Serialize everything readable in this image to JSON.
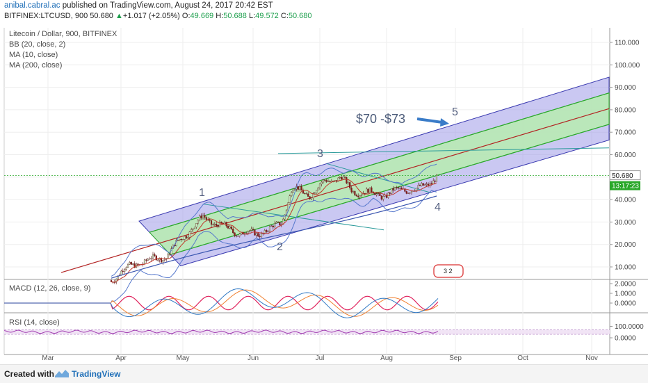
{
  "header": {
    "user": "anibal.cabral.ac",
    "published": "published on TradingView.com, August 24, 2017 20:42 EST",
    "symbol": "BITFINEX:LTCUSD, 900",
    "last": "50.680",
    "change": "+1.017 (+2.05%)",
    "o_label": "O:",
    "o": "49.669",
    "h_label": "H:",
    "h": "50.688",
    "l_label": "L:",
    "l": "49.572",
    "c_label": "C:",
    "c": "50.680"
  },
  "overlays": [
    "Litecoin / Dollar, 900, BITFINEX",
    "BB (20, close, 2)",
    "MA (10, close)",
    "MA (200, close)"
  ],
  "annotations": {
    "wave1": "1",
    "wave2": "2",
    "wave3": "3",
    "wave4": "4",
    "wave5": "5",
    "target": "$70 -$73",
    "mini": "3 2"
  },
  "footer": {
    "created": "Created with",
    "brand": "TradingView"
  },
  "colors": {
    "channel_fill": "#9f9ae8",
    "channel_edge": "#3a3ab0",
    "inner_fill": "#b7ecb0",
    "inner_edge": "#2aa82a",
    "median": "#b22222",
    "bullish": "#c8f0c8",
    "bearish": "#8b1a1a",
    "macd_line": "#2f78c4",
    "signal_line": "#f08030",
    "hist": "#e0245e",
    "rsi": "#a03bb0",
    "ma200": "#3a56b0",
    "bb": "#5577cc",
    "arrow": "#3a7cc8"
  },
  "chart_data": [
    {
      "type": "candlestick",
      "title": "Litecoin / Dollar, 900, BITFINEX",
      "x_ticks": [
        "Mar",
        "Apr",
        "May",
        "Jun",
        "Jul",
        "Aug",
        "Sep",
        "Oct",
        "Nov"
      ],
      "y_ticks": [
        "10.000",
        "20.000",
        "30.000",
        "40.000",
        "50.000",
        "60.000",
        "70.000",
        "80.000",
        "90.000",
        "100.000",
        "110.000"
      ],
      "ylim": [
        5,
        115
      ],
      "last_price": "50.680",
      "countdown": "13:17:23",
      "approx_closes": {
        "x": [
          "Mar-29",
          "Apr-05",
          "Apr-12",
          "Apr-19",
          "Apr-26",
          "May-03",
          "May-10",
          "May-17",
          "May-24",
          "May-31",
          "Jun-07",
          "Jun-14",
          "Jun-21",
          "Jun-28",
          "Jul-05",
          "Jul-12",
          "Jul-19",
          "Jul-26",
          "Aug-02",
          "Aug-09",
          "Aug-16",
          "Aug-23"
        ],
        "values": [
          4,
          8,
          12,
          14,
          15,
          24,
          32,
          28,
          25,
          25,
          27,
          30,
          45,
          42,
          48,
          50,
          44,
          43,
          42,
          45,
          44,
          50
        ]
      }
    },
    {
      "type": "line",
      "title": "MACD (12, 26, close, 9)",
      "y_ticks": [
        "0.0000",
        "1.0000",
        "2.0000"
      ],
      "ylim": [
        -1,
        2.2
      ]
    },
    {
      "type": "line",
      "title": "RSI (14, close)",
      "y_ticks": [
        "0.0000",
        "100.0000"
      ],
      "ylim": [
        -20,
        120
      ]
    }
  ]
}
